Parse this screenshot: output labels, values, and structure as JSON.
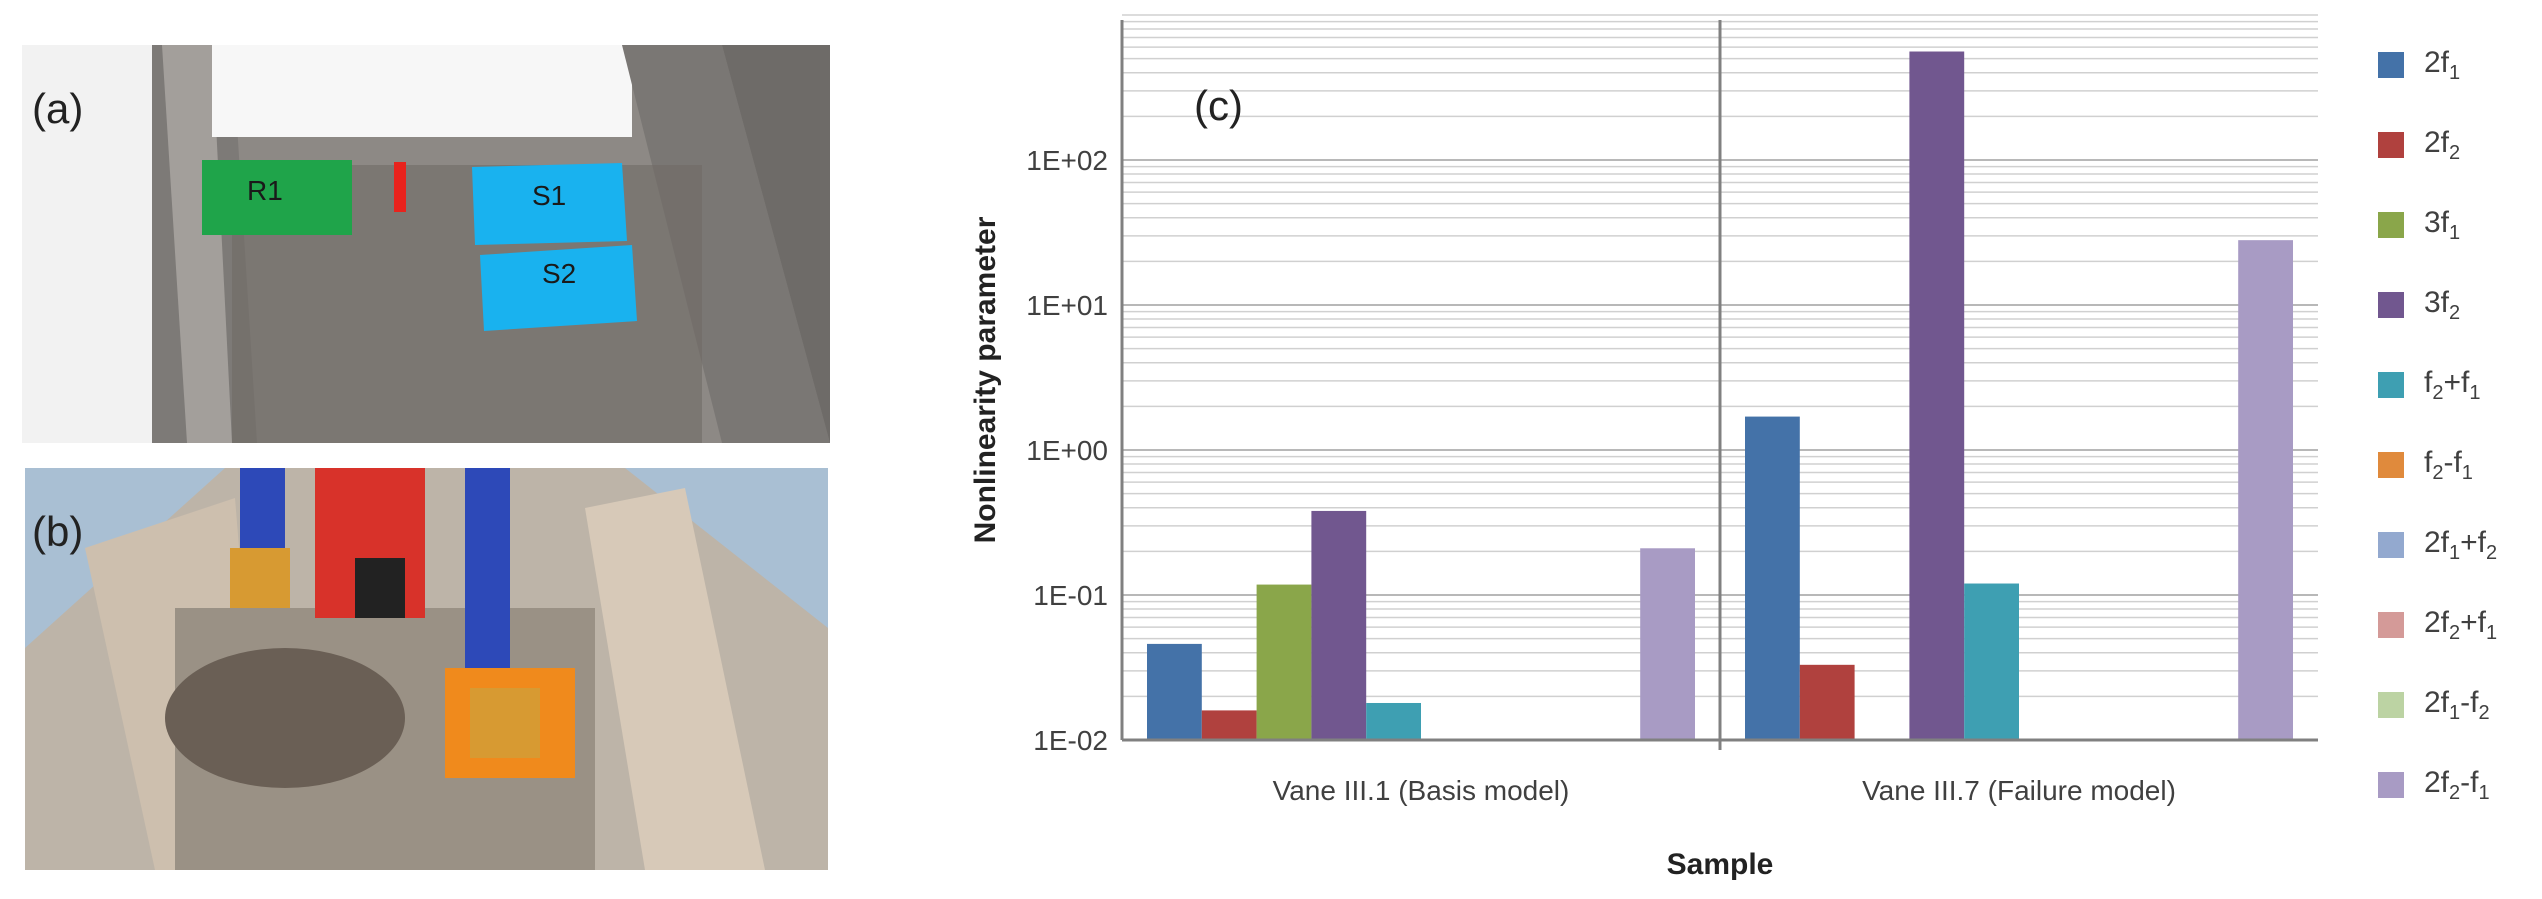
{
  "panels": {
    "a": {
      "label": "(a)",
      "regions": [
        "R1",
        "S1",
        "S2"
      ]
    },
    "b": {
      "label": "(b)"
    },
    "c": {
      "label": "(c)"
    }
  },
  "chart_data": {
    "type": "bar",
    "yscale": "log",
    "xlabel": "Sample",
    "ylabel": "Nonlinearity parameter",
    "ylim": [
      0.01,
      1000
    ],
    "yticks": [
      0.01,
      0.1,
      1,
      10,
      100
    ],
    "ytick_labels": [
      "1E-02",
      "1E-01",
      "1E+00",
      "1E+01",
      "1E+02"
    ],
    "categories": [
      "Vane III.1 (Basis model)",
      "Vane III.7 (Failure model)"
    ],
    "series": [
      {
        "name": "2f1",
        "label_main": "2f",
        "label_parts": [
          [
            "1",
            ""
          ]
        ],
        "color": "#4472a8",
        "values": [
          0.046,
          1.7
        ]
      },
      {
        "name": "2f2",
        "label_main": "2f",
        "label_parts": [
          [
            "2",
            ""
          ]
        ],
        "color": "#b0413e",
        "values": [
          0.016,
          0.033
        ]
      },
      {
        "name": "3f1",
        "label_main": "3f",
        "label_parts": [
          [
            "1",
            ""
          ]
        ],
        "color": "#8aa64a",
        "values": [
          0.118,
          null
        ]
      },
      {
        "name": "3f2",
        "label_main": "3f",
        "label_parts": [
          [
            "2",
            ""
          ]
        ],
        "color": "#71578f",
        "values": [
          0.38,
          560
        ]
      },
      {
        "name": "f2+f1",
        "label_main": "f",
        "label_parts": [
          [
            "2",
            "+f"
          ],
          [
            "1",
            ""
          ]
        ],
        "color": "#3e9fb2",
        "values": [
          0.018,
          0.12
        ]
      },
      {
        "name": "f2-f1",
        "label_main": "f",
        "label_parts": [
          [
            "2",
            "-f"
          ],
          [
            "1",
            ""
          ]
        ],
        "color": "#e08a3c",
        "values": [
          null,
          null
        ]
      },
      {
        "name": "2f1+f2",
        "label_main": "2f",
        "label_parts": [
          [
            "1",
            "+f"
          ],
          [
            "2",
            ""
          ]
        ],
        "color": "#93a9cf",
        "values": [
          null,
          null
        ]
      },
      {
        "name": "2f2+f1",
        "label_main": "2f",
        "label_parts": [
          [
            "2",
            "+f"
          ],
          [
            "1",
            ""
          ]
        ],
        "color": "#d49a98",
        "values": [
          null,
          null
        ]
      },
      {
        "name": "2f1-f2",
        "label_main": "2f",
        "label_parts": [
          [
            "1",
            "-f"
          ],
          [
            "2",
            ""
          ]
        ],
        "color": "#bcd3a3",
        "values": [
          null,
          null
        ]
      },
      {
        "name": "2f2-f1",
        "label_main": "2f",
        "label_parts": [
          [
            "2",
            "-f"
          ],
          [
            "1",
            ""
          ]
        ],
        "color": "#a89bc4",
        "values": [
          0.21,
          28
        ]
      }
    ]
  }
}
